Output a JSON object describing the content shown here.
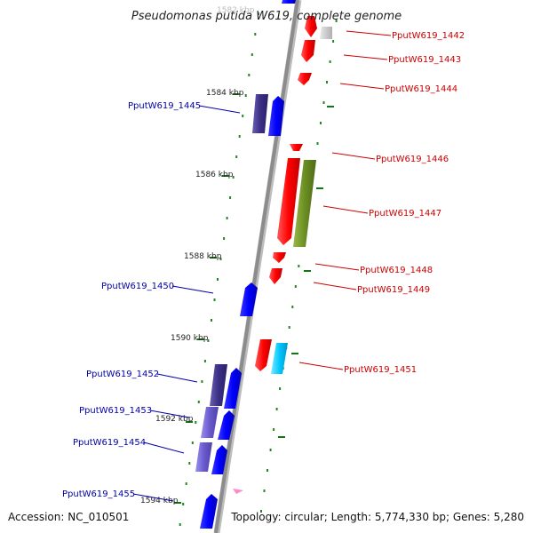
{
  "title": "Pseudomonas putida W619, complete genome",
  "footer": {
    "accession": "Accession: NC_010501",
    "topology": "Topology: circular; Length: 5,774,330 bp; Genes: 5,280"
  },
  "colors": {
    "forward_label": "#cc0000",
    "reverse_label": "#0000aa",
    "backbone": "#8c8c8c",
    "tick": "#117711"
  },
  "kbp_marks": [
    "1584 kbp",
    "1586 kbp",
    "1588 kbp",
    "1590 kbp",
    "1592 kbp",
    "1594 kbp"
  ],
  "genes": [
    {
      "id": "PputW619_1442",
      "strand": "+",
      "label": "PputW619_1442"
    },
    {
      "id": "PputW619_1443",
      "strand": "+",
      "label": "PputW619_1443"
    },
    {
      "id": "PputW619_1444",
      "strand": "+",
      "label": "PputW619_1444"
    },
    {
      "id": "PputW619_1445",
      "strand": "-",
      "label": "PputW619_1445"
    },
    {
      "id": "PputW619_1446",
      "strand": "+",
      "label": "PputW619_1446"
    },
    {
      "id": "PputW619_1447",
      "strand": "+",
      "label": "PputW619_1447"
    },
    {
      "id": "PputW619_1448",
      "strand": "+",
      "label": "PputW619_1448"
    },
    {
      "id": "PputW619_1449",
      "strand": "+",
      "label": "PputW619_1449"
    },
    {
      "id": "PputW619_1450",
      "strand": "-",
      "label": "PputW619_1450"
    },
    {
      "id": "PputW619_1451",
      "strand": "+",
      "label": "PputW619_1451"
    },
    {
      "id": "PputW619_1452",
      "strand": "-",
      "label": "PputW619_1452"
    },
    {
      "id": "PputW619_1453",
      "strand": "-",
      "label": "PputW619_1453"
    },
    {
      "id": "PputW619_1454",
      "strand": "-",
      "label": "PputW619_1454"
    },
    {
      "id": "PputW619_1455",
      "strand": "-",
      "label": "PputW619_1455"
    }
  ]
}
